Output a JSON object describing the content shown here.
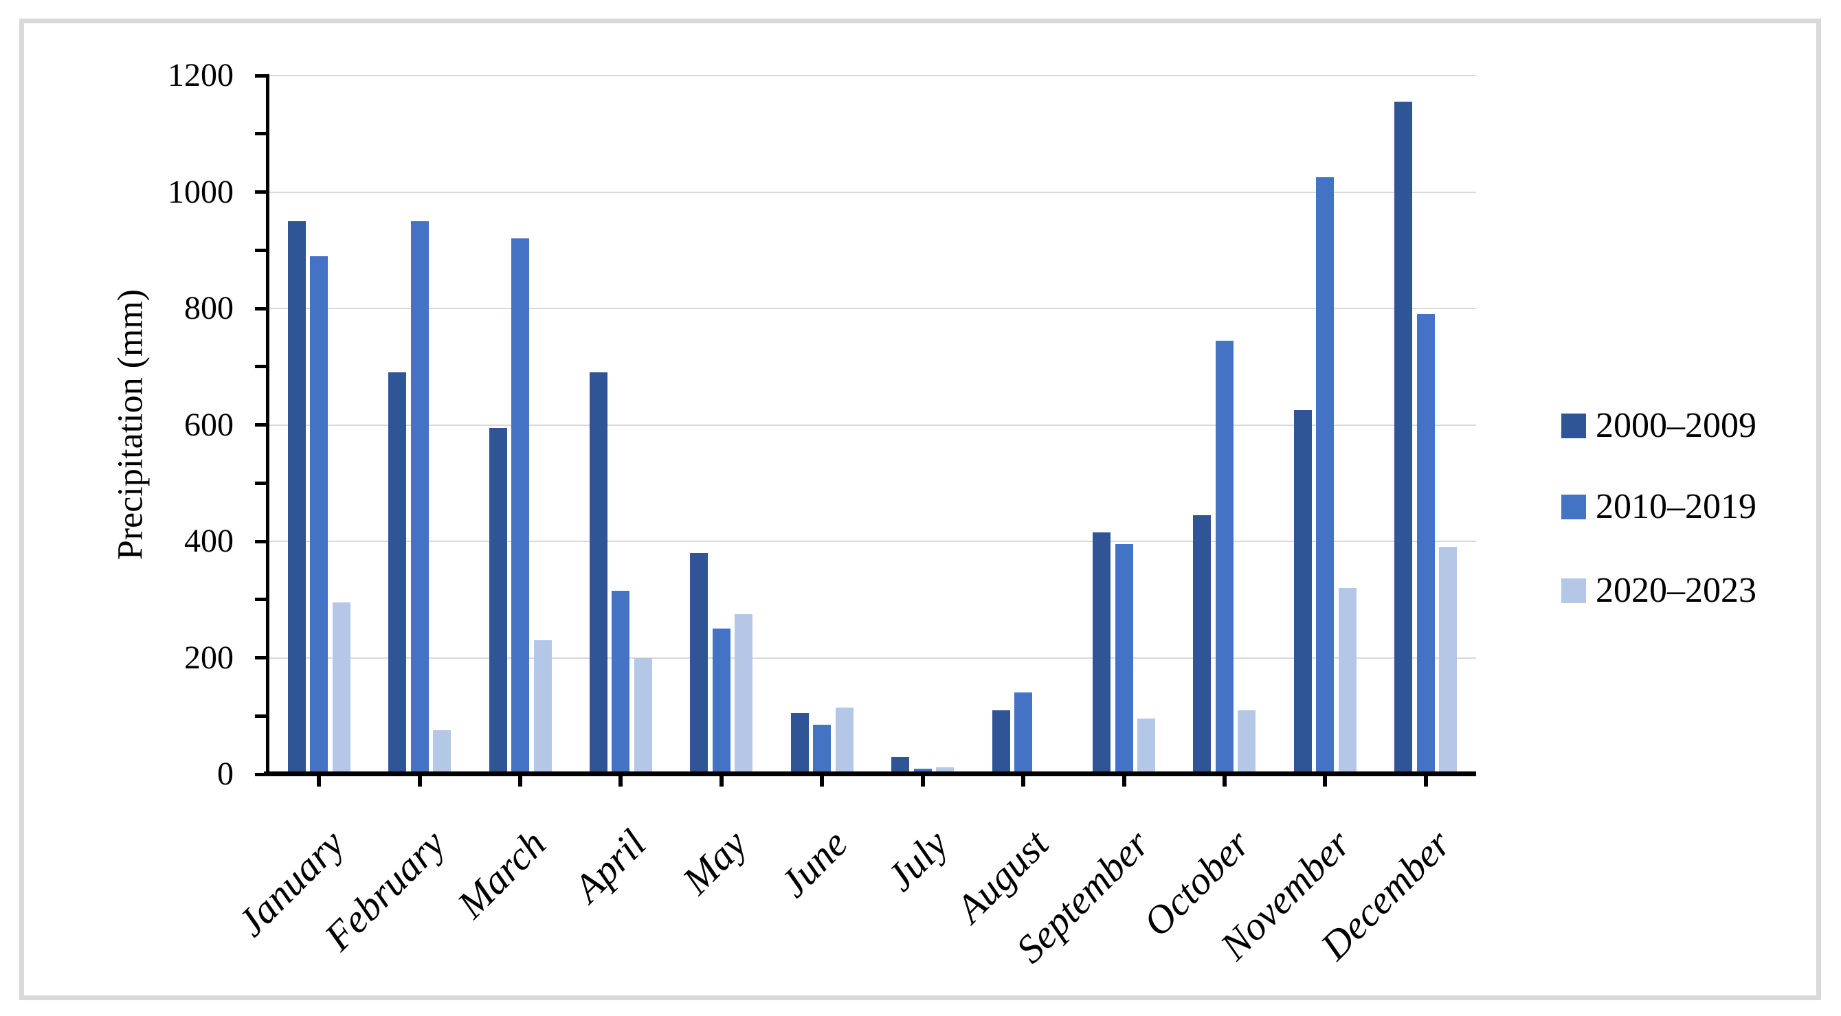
{
  "figure": {
    "background": "#FFFFFF",
    "border_color": "#D9D9D9",
    "gridline_color": "#D9D9D9",
    "axis_color": "#000000"
  },
  "chart_data": {
    "type": "bar",
    "title": "",
    "xlabel": "",
    "ylabel": "Precipitation (mm)",
    "ylim": [
      0,
      1200
    ],
    "ytick_interval": 200,
    "y_minor_tick_interval": 100,
    "grid": true,
    "legend_position": "right-middle",
    "categories": [
      "January",
      "February",
      "March",
      "April",
      "May",
      "June",
      "July",
      "August",
      "September",
      "October",
      "November",
      "December"
    ],
    "yticks": [
      0,
      200,
      400,
      600,
      800,
      1000,
      1200
    ],
    "series": [
      {
        "name": "2000–2009",
        "color": "#2F5597",
        "values": [
          950,
          690,
          595,
          690,
          380,
          105,
          30,
          110,
          415,
          445,
          625,
          1155
        ]
      },
      {
        "name": "2010–2019",
        "color": "#4472C4",
        "values": [
          890,
          950,
          920,
          315,
          250,
          85,
          10,
          140,
          395,
          745,
          1025,
          790
        ]
      },
      {
        "name": "2020–2023",
        "color": "#B4C7E7",
        "values": [
          295,
          75,
          230,
          200,
          275,
          115,
          12,
          5,
          95,
          110,
          320,
          390
        ]
      }
    ]
  }
}
